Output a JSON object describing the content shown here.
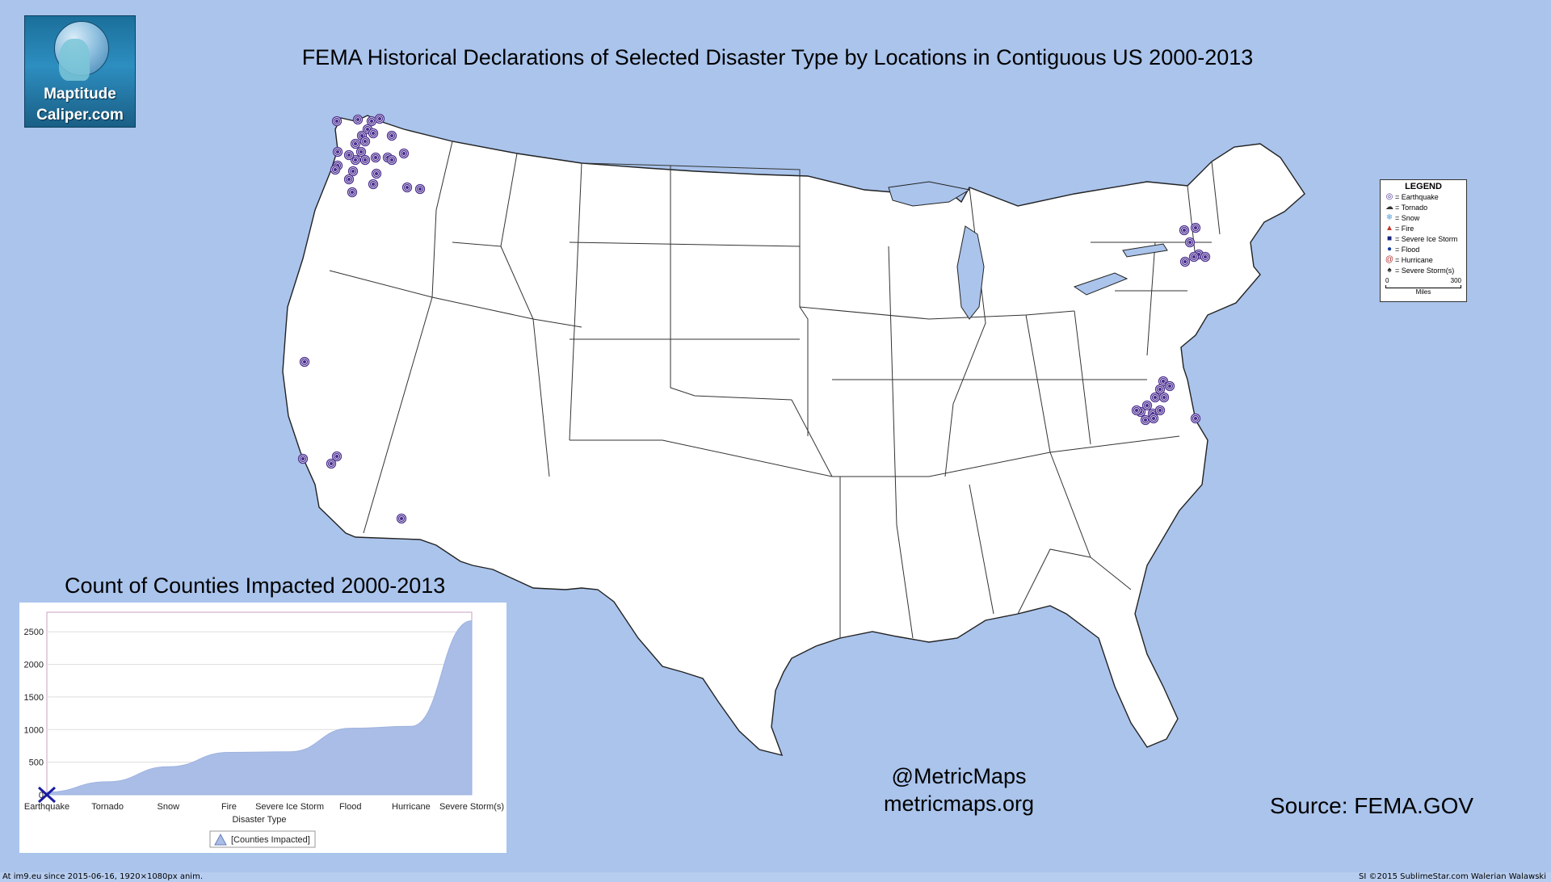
{
  "logo": {
    "line1": "Maptitude",
    "line2": "Caliper.com"
  },
  "title": "FEMA Historical Declarations of Selected Disaster Type by Locations in Contiguous US 2000-2013",
  "legend": {
    "title": "LEGEND",
    "items": [
      {
        "symbol": "◎",
        "label": "=  Earthquake",
        "color": "#4b2f8f"
      },
      {
        "symbol": "☁",
        "label": "= Tornado",
        "color": "#333333"
      },
      {
        "symbol": "❄",
        "label": "=  Snow",
        "color": "#5aa0d8"
      },
      {
        "symbol": "▲",
        "label": "= Fire",
        "color": "#c0392b"
      },
      {
        "symbol": "■",
        "label": "= Severe Ice Storm",
        "color": "#1a237e"
      },
      {
        "symbol": "●",
        "label": "= Flood",
        "color": "#1a3a9e"
      },
      {
        "symbol": "@",
        "label": "= Hurricane",
        "color": "#b03030"
      },
      {
        "symbol": "♠",
        "label": "= Severe Storm(s)",
        "color": "#222222"
      }
    ],
    "scale_start": "0",
    "scale_end": "300",
    "scale_unit": "Miles"
  },
  "chart_data": {
    "type": "area",
    "title": "Count of Counties Impacted 2000-2013",
    "categories": [
      "Earthquake",
      "Tornado",
      "Snow",
      "Fire",
      "Severe Ice Storm",
      "Flood",
      "Hurricane",
      "Severe Storm(s)"
    ],
    "series": [
      {
        "name": "[Counties Impacted]",
        "values": [
          40,
          200,
          430,
          650,
          660,
          1020,
          1050,
          2670
        ]
      }
    ],
    "xlabel": "Disaster Type",
    "ylabel": "",
    "yticks": [
      0,
      500,
      1000,
      1500,
      2000,
      2500
    ],
    "ylim": [
      0,
      2800
    ],
    "grid": true,
    "legend_position": "bottom",
    "fill_color": "#a9bde6",
    "marker": "Earthquake"
  },
  "earthquake_marker_color": "#4b2f8f",
  "handle": {
    "line1": "@MetricMaps",
    "line2": "metricmaps.org"
  },
  "source": "Source: FEMA.GOV",
  "footer": {
    "left": "At im9.eu since 2015-06-16, 1920×1080px anim.",
    "right": "SI ©2015 SublimeStar.com Walerian Walawski"
  }
}
